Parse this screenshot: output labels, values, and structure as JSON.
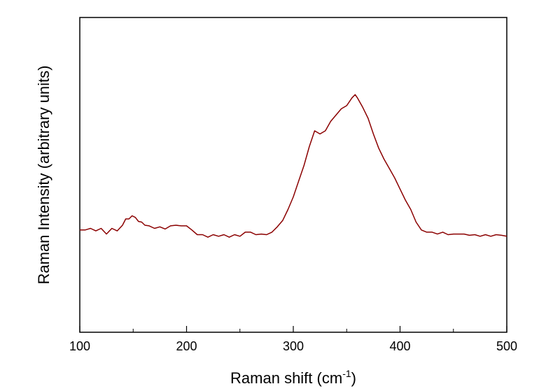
{
  "chart_data": {
    "type": "line",
    "title": "",
    "xlabel": "Raman shift (cm",
    "xlabel_superscript": "-1",
    "xlabel_suffix": ")",
    "ylabel": "Raman Intensity (arbitrary units)",
    "xlim": [
      100,
      500
    ],
    "ylim": [
      0,
      1
    ],
    "x_ticks": [
      100,
      200,
      300,
      400,
      500
    ],
    "x_tick_labels": [
      "100",
      "200",
      "300",
      "400",
      "500"
    ],
    "y_tick_labels": [],
    "grid": false,
    "legend": "none",
    "series_color": "#8B0000",
    "series": [
      {
        "x": [
          100,
          105,
          110,
          115,
          120,
          125,
          130,
          135,
          140,
          143,
          146,
          149,
          152,
          155,
          158,
          161,
          165,
          170,
          175,
          180,
          185,
          190,
          195,
          200,
          205,
          210,
          215,
          220,
          225,
          230,
          235,
          240,
          245,
          250,
          255,
          260,
          265,
          270,
          275,
          280,
          285,
          290,
          295,
          300,
          305,
          310,
          315,
          320,
          325,
          330,
          335,
          340,
          345,
          350,
          355,
          358,
          360,
          365,
          370,
          375,
          380,
          385,
          390,
          395,
          400,
          405,
          410,
          415,
          420,
          425,
          430,
          435,
          440,
          445,
          450,
          455,
          460,
          465,
          470,
          475,
          480,
          485,
          490,
          495,
          500
        ],
        "y": [
          0.325,
          0.325,
          0.33,
          0.322,
          0.33,
          0.312,
          0.33,
          0.322,
          0.34,
          0.36,
          0.36,
          0.37,
          0.365,
          0.352,
          0.35,
          0.34,
          0.338,
          0.33,
          0.335,
          0.328,
          0.338,
          0.34,
          0.338,
          0.338,
          0.325,
          0.31,
          0.31,
          0.302,
          0.31,
          0.305,
          0.31,
          0.302,
          0.31,
          0.305,
          0.318,
          0.318,
          0.31,
          0.312,
          0.31,
          0.318,
          0.335,
          0.355,
          0.39,
          0.43,
          0.48,
          0.53,
          0.59,
          0.64,
          0.63,
          0.64,
          0.67,
          0.69,
          0.71,
          0.72,
          0.745,
          0.755,
          0.745,
          0.715,
          0.68,
          0.63,
          0.585,
          0.55,
          0.52,
          0.49,
          0.455,
          0.42,
          0.39,
          0.35,
          0.325,
          0.318,
          0.318,
          0.312,
          0.318,
          0.31,
          0.312,
          0.312,
          0.312,
          0.308,
          0.31,
          0.305,
          0.31,
          0.305,
          0.31,
          0.308,
          0.305
        ]
      }
    ]
  }
}
